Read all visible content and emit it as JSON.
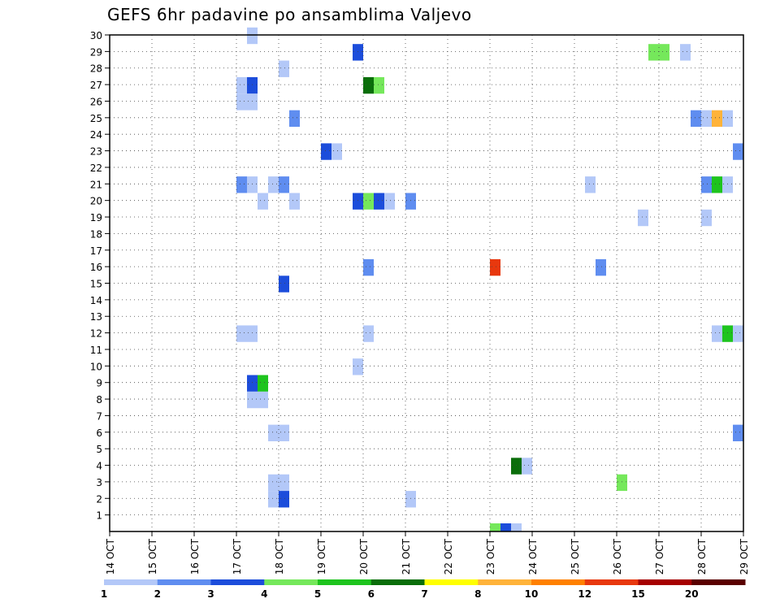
{
  "chart_data": {
    "type": "heatmap",
    "title": "GEFS 6hr padavine po ansamblima Valjevo",
    "xlabel": "",
    "ylabel": "",
    "x_ticks": [
      "14 OCT",
      "15 OCT",
      "16 OCT",
      "17 OCT",
      "18 OCT",
      "19 OCT",
      "20 OCT",
      "21 OCT",
      "22 OCT",
      "23 OCT",
      "24 OCT",
      "25 OCT",
      "26 OCT",
      "27 OCT",
      "28 OCT",
      "29 OCT"
    ],
    "y_ticks": [
      1,
      2,
      3,
      4,
      5,
      6,
      7,
      8,
      9,
      10,
      11,
      12,
      13,
      14,
      15,
      16,
      17,
      18,
      19,
      20,
      21,
      22,
      23,
      24,
      25,
      26,
      27,
      28,
      29,
      30
    ],
    "x_range_days": [
      0,
      15
    ],
    "y_range": [
      0,
      30
    ],
    "grid": "dotted",
    "colorbar": {
      "labels": [
        "1",
        "2",
        "3",
        "4",
        "5",
        "6",
        "7",
        "8",
        "10",
        "12",
        "15",
        "20"
      ],
      "colors": [
        "#b3c8f8",
        "#5f8df0",
        "#1c4ddb",
        "#75e85b",
        "#1ec41e",
        "#0a6e0a",
        "#ffff00",
        "#ffb33a",
        "#ff8000",
        "#e8380e",
        "#a60000",
        "#5a0000"
      ]
    },
    "cell_size": [
      0.25,
      1
    ],
    "cells": [
      [
        3.25,
        30,
        0
      ],
      [
        5.75,
        29,
        2
      ],
      [
        12.75,
        29,
        3
      ],
      [
        13.0,
        29,
        3
      ],
      [
        13.5,
        29,
        0
      ],
      [
        4.0,
        28,
        0
      ],
      [
        3.0,
        27,
        0
      ],
      [
        3.25,
        27,
        2
      ],
      [
        6.0,
        27,
        5
      ],
      [
        6.25,
        27,
        3
      ],
      [
        3.0,
        26,
        0
      ],
      [
        3.25,
        26,
        0
      ],
      [
        4.25,
        25,
        1
      ],
      [
        13.75,
        25,
        1
      ],
      [
        14.0,
        25,
        0
      ],
      [
        14.25,
        25,
        7
      ],
      [
        14.5,
        25,
        0
      ],
      [
        5.0,
        23,
        2
      ],
      [
        5.25,
        23,
        0
      ],
      [
        14.75,
        23,
        1
      ],
      [
        3.0,
        21,
        1
      ],
      [
        3.25,
        21,
        0
      ],
      [
        3.75,
        21,
        0
      ],
      [
        4.0,
        21,
        1
      ],
      [
        11.25,
        21,
        0
      ],
      [
        14.0,
        21,
        1
      ],
      [
        14.25,
        21,
        4
      ],
      [
        14.5,
        21,
        0
      ],
      [
        3.5,
        20,
        0
      ],
      [
        4.25,
        20,
        0
      ],
      [
        5.75,
        20,
        2
      ],
      [
        6.0,
        20,
        3
      ],
      [
        6.25,
        20,
        2
      ],
      [
        6.5,
        20,
        0
      ],
      [
        7.0,
        20,
        1
      ],
      [
        12.5,
        19,
        0
      ],
      [
        14.0,
        19,
        0
      ],
      [
        6.0,
        16,
        1
      ],
      [
        9.0,
        16,
        9
      ],
      [
        11.5,
        16,
        1
      ],
      [
        4.0,
        15,
        2
      ],
      [
        3.0,
        12,
        0
      ],
      [
        3.25,
        12,
        0
      ],
      [
        6.0,
        12,
        0
      ],
      [
        14.25,
        12,
        0
      ],
      [
        14.5,
        12,
        4
      ],
      [
        14.75,
        12,
        0
      ],
      [
        5.75,
        10,
        0
      ],
      [
        3.25,
        9,
        2
      ],
      [
        3.5,
        9,
        4
      ],
      [
        3.25,
        8,
        0
      ],
      [
        3.5,
        8,
        0
      ],
      [
        3.75,
        6,
        0
      ],
      [
        4.0,
        6,
        0
      ],
      [
        14.75,
        6,
        1
      ],
      [
        9.5,
        4,
        5
      ],
      [
        9.75,
        4,
        0
      ],
      [
        12.0,
        3,
        3
      ],
      [
        3.75,
        3,
        0
      ],
      [
        4.0,
        3,
        0
      ],
      [
        3.75,
        2,
        0
      ],
      [
        4.0,
        2,
        2
      ],
      [
        7.0,
        2,
        0
      ],
      [
        9.0,
        0,
        3
      ],
      [
        9.25,
        0,
        2
      ],
      [
        9.5,
        0,
        0
      ]
    ]
  }
}
